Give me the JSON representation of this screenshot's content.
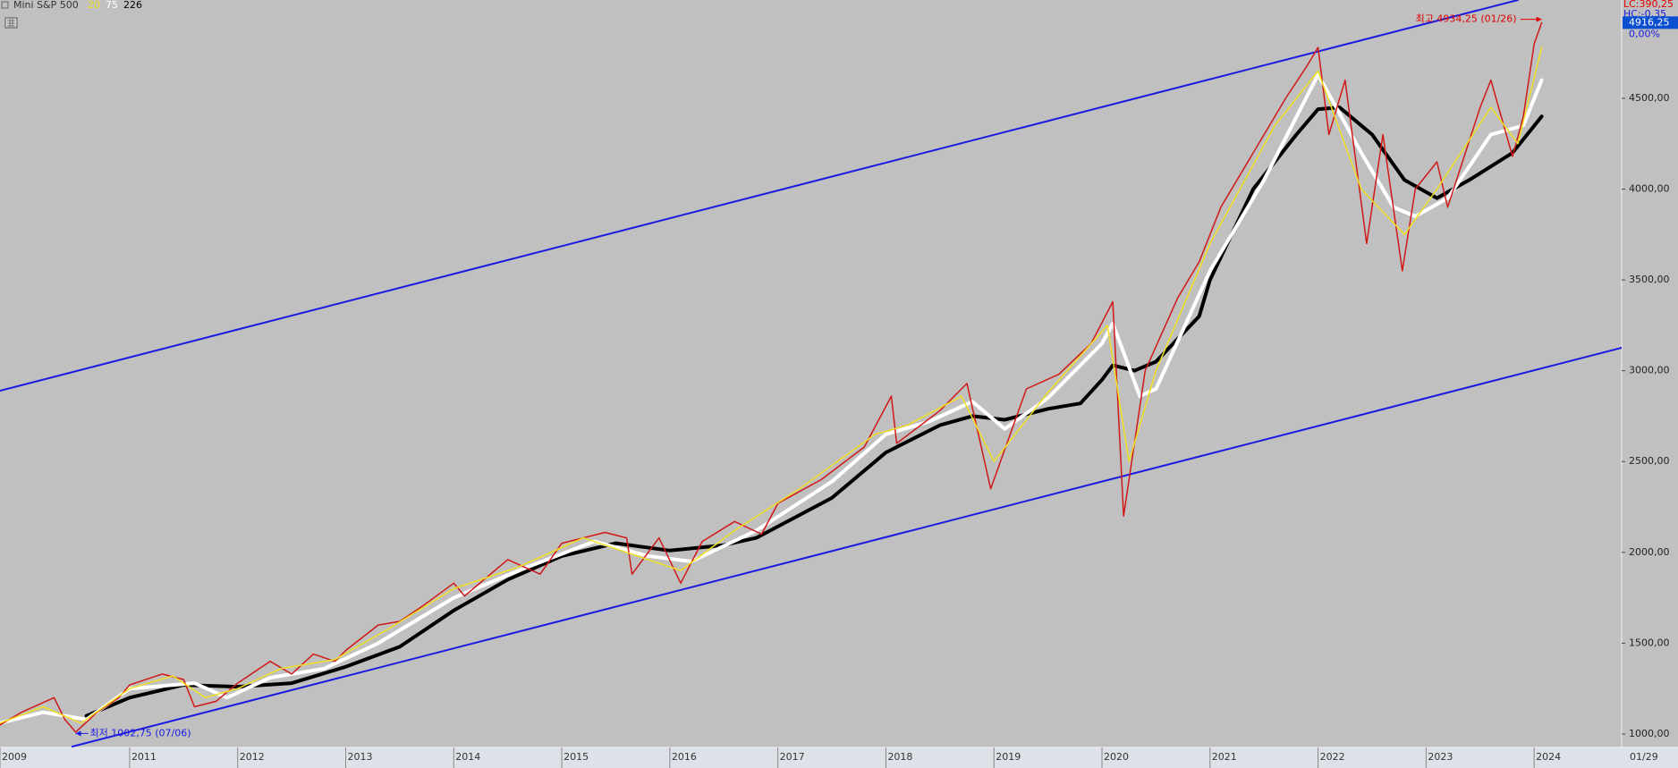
{
  "chart_data": {
    "type": "line",
    "xlim": [
      2009.8,
      2024.81
    ],
    "ylim": [
      926,
      5041
    ],
    "xticks": [
      {
        "value": 2009.8,
        "label": "2009"
      },
      {
        "value": 2011,
        "label": "2011"
      },
      {
        "value": 2012,
        "label": "2012"
      },
      {
        "value": 2013,
        "label": "2013"
      },
      {
        "value": 2014,
        "label": "2014"
      },
      {
        "value": 2015,
        "label": "2015"
      },
      {
        "value": 2016,
        "label": "2016"
      },
      {
        "value": 2017,
        "label": "2017"
      },
      {
        "value": 2018,
        "label": "2018"
      },
      {
        "value": 2019,
        "label": "2019"
      },
      {
        "value": 2020,
        "label": "2020"
      },
      {
        "value": 2021,
        "label": "2021"
      },
      {
        "value": 2022,
        "label": "2022"
      },
      {
        "value": 2023,
        "label": "2023"
      },
      {
        "value": 2024,
        "label": "2024"
      }
    ],
    "date_label": "01/29",
    "yticks": [
      {
        "value": 1000,
        "label": "1000,00"
      },
      {
        "value": 1500,
        "label": "1500,00"
      },
      {
        "value": 2000,
        "label": "2000,00"
      },
      {
        "value": 2500,
        "label": "2500,00"
      },
      {
        "value": 3000,
        "label": "3000,00"
      },
      {
        "value": 3500,
        "label": "3500,00"
      },
      {
        "value": 4000,
        "label": "4000,00"
      },
      {
        "value": 4500,
        "label": "4500,00"
      }
    ],
    "series": [
      {
        "name": "Mini S&P 500",
        "color": "#d01818",
        "x": [
          2009.8,
          2010.0,
          2010.3,
          2010.4,
          2010.5,
          2010.7,
          2010.9,
          2011.0,
          2011.3,
          2011.5,
          2011.6,
          2011.8,
          2012.0,
          2012.3,
          2012.5,
          2012.7,
          2012.9,
          2013.0,
          2013.3,
          2013.5,
          2013.7,
          2014.0,
          2014.1,
          2014.5,
          2014.8,
          2015.0,
          2015.4,
          2015.6,
          2015.65,
          2015.9,
          2016.1,
          2016.3,
          2016.6,
          2016.85,
          2017.0,
          2017.4,
          2017.8,
          2018.05,
          2018.1,
          2018.5,
          2018.75,
          2018.97,
          2019.3,
          2019.6,
          2019.9,
          2020.1,
          2020.2,
          2020.4,
          2020.7,
          2020.9,
          2021.1,
          2021.4,
          2021.7,
          2021.9,
          2022.0,
          2022.1,
          2022.25,
          2022.45,
          2022.6,
          2022.78,
          2022.9,
          2023.1,
          2023.2,
          2023.5,
          2023.6,
          2023.8,
          2023.9,
          2024.0,
          2024.07
        ],
        "values": [
          1050,
          1120,
          1200,
          1080,
          1010,
          1120,
          1200,
          1270,
          1330,
          1300,
          1150,
          1180,
          1280,
          1400,
          1330,
          1440,
          1400,
          1460,
          1600,
          1620,
          1700,
          1830,
          1760,
          1960,
          1880,
          2050,
          2110,
          2080,
          1880,
          2080,
          1830,
          2060,
          2170,
          2100,
          2270,
          2400,
          2580,
          2860,
          2600,
          2780,
          2930,
          2350,
          2900,
          2980,
          3150,
          3380,
          2200,
          3000,
          3400,
          3600,
          3900,
          4200,
          4500,
          4680,
          4780,
          4300,
          4600,
          3700,
          4300,
          3550,
          4000,
          4150,
          3900,
          4450,
          4600,
          4180,
          4400,
          4800,
          4916.25
        ]
      },
      {
        "name": "20",
        "color": "#f0e020",
        "x": [
          2009.8,
          2010.2,
          2010.55,
          2011.0,
          2011.4,
          2011.7,
          2012.0,
          2012.4,
          2012.9,
          2013.4,
          2014.0,
          2014.6,
          2015.2,
          2015.7,
          2016.1,
          2016.6,
          2017.2,
          2017.9,
          2018.2,
          2018.7,
          2019.0,
          2019.5,
          2020.05,
          2020.25,
          2020.5,
          2021.0,
          2021.6,
          2022.0,
          2022.4,
          2022.8,
          2023.1,
          2023.6,
          2023.85,
          2024.07
        ],
        "values": [
          1060,
          1150,
          1060,
          1250,
          1320,
          1200,
          1250,
          1360,
          1410,
          1580,
          1800,
          1920,
          2080,
          1980,
          1900,
          2120,
          2350,
          2650,
          2700,
          2860,
          2500,
          2880,
          3250,
          2500,
          3000,
          3700,
          4350,
          4650,
          4000,
          3750,
          4000,
          4450,
          4250,
          4780
        ]
      },
      {
        "name": "75",
        "color": "#ffffff",
        "x": [
          2009.8,
          2010.2,
          2010.6,
          2011.0,
          2011.6,
          2011.9,
          2012.3,
          2012.8,
          2013.3,
          2014.0,
          2014.6,
          2015.3,
          2015.8,
          2016.2,
          2016.8,
          2017.5,
          2018.0,
          2018.4,
          2018.8,
          2019.1,
          2019.5,
          2020.0,
          2020.1,
          2020.35,
          2020.5,
          2021.0,
          2021.5,
          2022.0,
          2022.4,
          2022.7,
          2022.9,
          2023.2,
          2023.6,
          2023.9,
          2024.07
        ],
        "values": [
          1060,
          1120,
          1080,
          1250,
          1280,
          1200,
          1310,
          1360,
          1500,
          1750,
          1900,
          2060,
          1980,
          1950,
          2120,
          2390,
          2650,
          2720,
          2830,
          2680,
          2850,
          3150,
          3260,
          2860,
          2900,
          3550,
          4050,
          4630,
          4200,
          3900,
          3850,
          3950,
          4300,
          4350,
          4600
        ]
      },
      {
        "name": "226",
        "color": "#000000",
        "x": [
          2010.6,
          2011.0,
          2011.5,
          2012.0,
          2012.5,
          2013.0,
          2013.5,
          2014.0,
          2014.5,
          2015.0,
          2015.5,
          2016.0,
          2016.5,
          2016.8,
          2017.5,
          2018.0,
          2018.5,
          2018.8,
          2019.1,
          2019.5,
          2019.8,
          2020.0,
          2020.1,
          2020.3,
          2020.5,
          2020.9,
          2021.0,
          2021.4,
          2021.8,
          2022.0,
          2022.2,
          2022.5,
          2022.8,
          2023.1,
          2023.4,
          2023.8,
          2024.07
        ],
        "values": [
          1100,
          1200,
          1270,
          1260,
          1280,
          1370,
          1480,
          1680,
          1850,
          1980,
          2050,
          2010,
          2040,
          2080,
          2300,
          2550,
          2700,
          2750,
          2730,
          2790,
          2820,
          2950,
          3030,
          3000,
          3050,
          3300,
          3500,
          4000,
          4300,
          4440,
          4450,
          4300,
          4050,
          3950,
          4050,
          4200,
          4400
        ]
      }
    ],
    "trendlines": [
      {
        "color": "#1a1ae0",
        "x": [
          2009.8,
          2023.85
        ],
        "values": [
          2890,
          5041
        ]
      },
      {
        "color": "#1a1ae0",
        "x": [
          2010.47,
          2024.81
        ],
        "values": [
          931,
          3126
        ]
      }
    ],
    "annotations": [
      {
        "text": "최고 4934,25 (01/26)",
        "x": 2024.07,
        "value": 4934.25,
        "color": "#e00000",
        "side": "left"
      },
      {
        "text": "최저 1002,75 (07/06)",
        "x": 2010.5,
        "value": 1002.75,
        "color": "#1a1ae0",
        "side": "right"
      }
    ],
    "current_price": {
      "value": 4916.25,
      "label": "4916,25",
      "change": "0,00%"
    },
    "header_left": "LC:390,25",
    "header_right": "HC:-0,35"
  }
}
